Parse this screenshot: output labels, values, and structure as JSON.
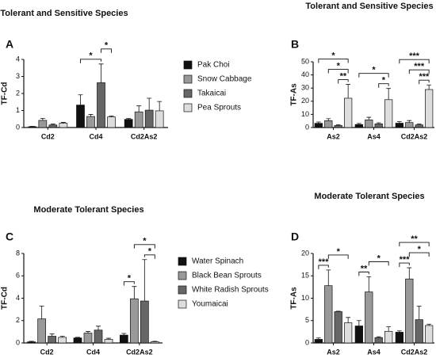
{
  "chart_data": [
    {
      "type": "bar",
      "title": "Tolerant and Sensitive Species",
      "panel_label": "A",
      "y_label": "TF-Cd",
      "categories": [
        "Cd2",
        "Cd4",
        "Cd2As2"
      ],
      "ylim": [
        0,
        4
      ],
      "yticks": [
        0,
        1,
        2,
        3,
        4
      ],
      "legend": true,
      "series": [
        {
          "name": "Pak Choi",
          "color": "#111111",
          "values": [
            0.05,
            1.32,
            0.48
          ],
          "errors": [
            0.02,
            0.6,
            0.05
          ]
        },
        {
          "name": "Snow Cabbage",
          "color": "#999999",
          "values": [
            0.42,
            0.65,
            0.92
          ],
          "errors": [
            0.12,
            0.12,
            0.35
          ]
        },
        {
          "name": "Takaicai",
          "color": "#666666",
          "values": [
            0.15,
            2.63,
            1.02
          ],
          "errors": [
            0.05,
            1.1,
            0.7
          ]
        },
        {
          "name": "Pea Sprouts",
          "color": "#dddddd",
          "values": [
            0.25,
            0.62,
            0.98
          ],
          "errors": [
            0.05,
            0.06,
            0.55
          ]
        }
      ],
      "brackets": [
        {
          "category": "Cd4",
          "from": "Pak Choi",
          "to": "Takaicai",
          "text": "*"
        },
        {
          "category": "Cd4",
          "from": "Takaicai",
          "to": "Pea Sprouts",
          "text": "*"
        }
      ]
    },
    {
      "type": "bar",
      "title": "Tolerant and Sensitive Species",
      "panel_label": "B",
      "y_label": "TF-As",
      "categories": [
        "As2",
        "As4",
        "Cd2As2"
      ],
      "ylim": [
        0,
        50
      ],
      "yticks": [
        0,
        10,
        20,
        30,
        40,
        50
      ],
      "legend": false,
      "series": [
        {
          "name": "Pak Choi",
          "color": "#111111",
          "values": [
            3.2,
            2.3,
            3.3
          ],
          "errors": [
            1,
            0.8,
            1.2
          ]
        },
        {
          "name": "Snow Cabbage",
          "color": "#999999",
          "values": [
            5.2,
            5.8,
            3.8
          ],
          "errors": [
            1.5,
            2,
            1.5
          ]
        },
        {
          "name": "Takaicai",
          "color": "#666666",
          "values": [
            1.5,
            2.8,
            2.0
          ],
          "errors": [
            0.5,
            0.8,
            0.6
          ]
        },
        {
          "name": "Pea Sprouts",
          "color": "#dddddd",
          "values": [
            22.3,
            21.2,
            28.9
          ],
          "errors": [
            10.5,
            8.5,
            3.5
          ]
        }
      ],
      "brackets": [
        {
          "category": "As2",
          "from": "Takaicai",
          "to": "Pea Sprouts",
          "text": "**"
        },
        {
          "category": "As2",
          "from": "Snow Cabbage",
          "to": "Pea Sprouts",
          "text": "*"
        },
        {
          "category": "As2",
          "from": "Pak Choi",
          "to": "Pea Sprouts",
          "text": "*"
        },
        {
          "category": "As4",
          "from": "Takaicai",
          "to": "Pea Sprouts",
          "text": "*"
        },
        {
          "category": "As4",
          "from": "Pak Choi",
          "to": "Pea Sprouts",
          "text": "*"
        },
        {
          "category": "Cd2As2",
          "from": "Takaicai",
          "to": "Pea Sprouts",
          "text": "***"
        },
        {
          "category": "Cd2As2",
          "from": "Snow Cabbage",
          "to": "Pea Sprouts",
          "text": "***"
        },
        {
          "category": "Cd2As2",
          "from": "Pak Choi",
          "to": "Pea Sprouts",
          "text": "***"
        }
      ]
    },
    {
      "type": "bar",
      "title": "Moderate Tolerant Species",
      "panel_label": "C",
      "y_label": "TF-Cd",
      "categories": [
        "Cd2",
        "Cd4",
        "Cd2As2"
      ],
      "ylim": [
        0,
        8
      ],
      "yticks": [
        0,
        2,
        4,
        6,
        8
      ],
      "legend": true,
      "series": [
        {
          "name": "Water Spinach",
          "color": "#111111",
          "values": [
            0.1,
            0.45,
            0.7
          ],
          "errors": [
            0.05,
            0.05,
            0.15
          ]
        },
        {
          "name": "Black Bean Sprouts",
          "color": "#999999",
          "values": [
            2.15,
            0.88,
            3.95
          ],
          "errors": [
            1.15,
            0.15,
            1.1
          ]
        },
        {
          "name": "White Radish Sprouts",
          "color": "#666666",
          "values": [
            0.6,
            1.15,
            3.75
          ],
          "errors": [
            0.2,
            0.35,
            3.7
          ]
        },
        {
          "name": "Youmaicai",
          "color": "#dddddd",
          "values": [
            0.5,
            0.32,
            0.1
          ],
          "errors": [
            0.1,
            0.1,
            0.05
          ]
        }
      ],
      "brackets": [
        {
          "category": "Cd2As2",
          "from": "Water Spinach",
          "to": "Black Bean Sprouts",
          "text": "*"
        },
        {
          "category": "Cd2As2",
          "from": "White Radish Sprouts",
          "to": "Youmaicai",
          "text": "*"
        },
        {
          "category": "Cd2As2",
          "from": "Black Bean Sprouts",
          "to": "Youmaicai",
          "text": "*"
        }
      ]
    },
    {
      "type": "bar",
      "title": "Moderate Tolerant Species",
      "panel_label": "D",
      "y_label": "TF-As",
      "categories": [
        "As2",
        "As4",
        "Cd2As2"
      ],
      "ylim": [
        0,
        20
      ],
      "yticks": [
        0,
        5,
        10,
        15,
        20
      ],
      "legend": false,
      "series": [
        {
          "name": "Water Spinach",
          "color": "#111111",
          "values": [
            0.8,
            3.8,
            2.4
          ],
          "errors": [
            0.3,
            1.2,
            0.3
          ]
        },
        {
          "name": "Black Bean Sprouts",
          "color": "#999999",
          "values": [
            12.8,
            11.4,
            14.3
          ],
          "errors": [
            3.5,
            3.4,
            2.5
          ]
        },
        {
          "name": "White Radish Sprouts",
          "color": "#666666",
          "values": [
            7.0,
            1.2,
            5.2
          ],
          "errors": [
            0.1,
            0.2,
            3
          ]
        },
        {
          "name": "Youmaicai",
          "color": "#dddddd",
          "values": [
            4.5,
            2.6,
            3.9
          ],
          "errors": [
            1.2,
            1.0,
            0.3
          ]
        }
      ],
      "brackets": [
        {
          "category": "As2",
          "from": "Water Spinach",
          "to": "Black Bean Sprouts",
          "text": "***"
        },
        {
          "category": "As2",
          "from": "Black Bean Sprouts",
          "to": "Youmaicai",
          "text": "*"
        },
        {
          "category": "As4",
          "from": "Water Spinach",
          "to": "Black Bean Sprouts",
          "text": "**"
        },
        {
          "category": "As4",
          "from": "Black Bean Sprouts",
          "to": "Youmaicai",
          "text": "*"
        },
        {
          "category": "Cd2As2",
          "from": "Water Spinach",
          "to": "Black Bean Sprouts",
          "text": "***"
        },
        {
          "category": "Cd2As2",
          "from": "Black Bean Sprouts",
          "to": "Youmaicai",
          "text": "*"
        },
        {
          "category": "Cd2As2",
          "from": "Water Spinach",
          "to": "Youmaicai",
          "text": "**"
        }
      ]
    }
  ]
}
